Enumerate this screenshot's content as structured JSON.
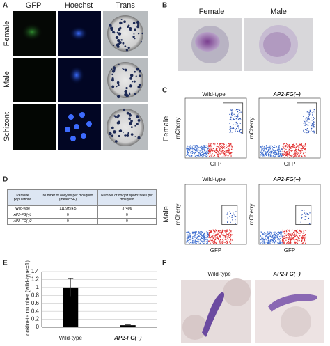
{
  "panel_labels": [
    "A",
    "B",
    "C",
    "D",
    "E",
    "F"
  ],
  "a": {
    "columns": [
      "GFP",
      "Hoechst",
      "Trans"
    ],
    "rows": [
      "Female",
      "Male",
      "Schizont"
    ]
  },
  "b": {
    "columns": [
      "Female",
      "Male"
    ]
  },
  "c": {
    "columns": [
      "Wild-type",
      "AP2-FG(−)"
    ],
    "rows": [
      "Female",
      "Male"
    ],
    "y_label": "mCherry",
    "x_label": "GFP"
  },
  "d": {
    "header": [
      "Parasite populations",
      "Number of oocysts per mosquito (mean±SE)",
      "Number of oocyst sporozoites per mosquito"
    ],
    "rows": [
      [
        "Wild-type",
        "111.9±24.5",
        "37406"
      ],
      [
        "AP2-FG(-)1",
        "0",
        "0"
      ],
      [
        "AP2-FG(-)2",
        "0",
        "0"
      ]
    ]
  },
  "f": {
    "columns": [
      "Wild-type",
      "AP2-FG(−)"
    ]
  },
  "chart_data": {
    "type": "bar",
    "y_label": "ookinete number (wild-type=1)",
    "categories": [
      "Wild-type",
      "AP2-FG(−)"
    ],
    "values": [
      1,
      0.05
    ],
    "errors": [
      0.22,
      0.01
    ],
    "ylim": [
      0,
      1.4
    ],
    "yticks": [
      0,
      0.2,
      0.4,
      0.6,
      0.8,
      1,
      1.2,
      1.4
    ],
    "color": "#000000",
    "grid": true
  }
}
